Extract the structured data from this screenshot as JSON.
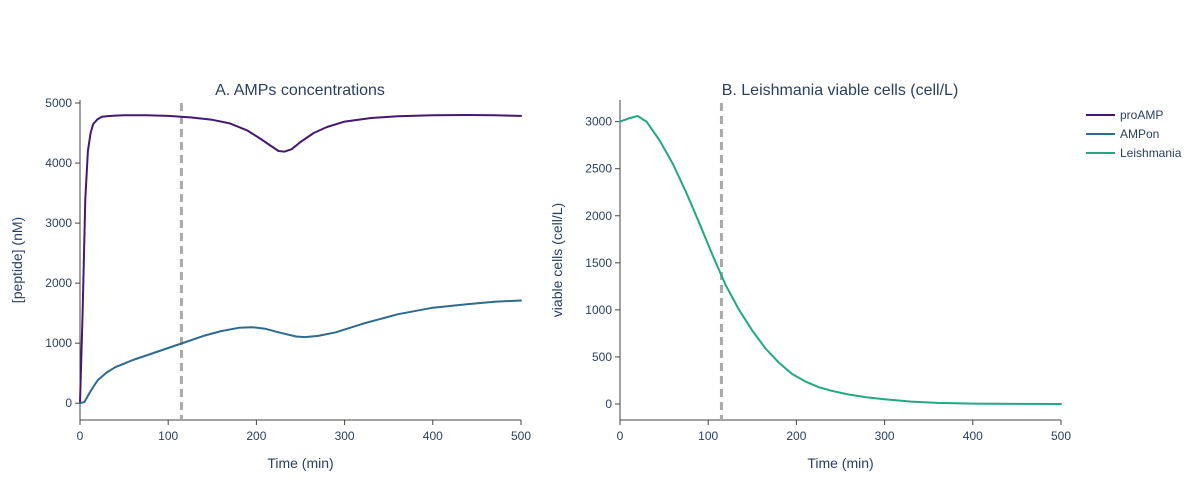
{
  "colors": {
    "proAMP": "#46186e",
    "AMPon": "#2e6b8e",
    "Leishmania": "#22a884",
    "marker": "#aaaaaa",
    "axis": "#444444",
    "text": "#2a3f5f"
  },
  "legend": {
    "placement": "right",
    "items": [
      "proAMP",
      "AMPon",
      "Leishmania"
    ]
  },
  "chart_data": [
    {
      "type": "line",
      "title": "A. AMPs concentrations",
      "xlabel": "Time (min)",
      "ylabel": "[peptide] (nM)",
      "xlim": [
        0,
        500
      ],
      "ylim": [
        -280,
        5050
      ],
      "xticks": [
        0,
        100,
        200,
        300,
        400,
        500
      ],
      "yticks": [
        0,
        1000,
        2000,
        3000,
        4000,
        5000
      ],
      "grid": false,
      "vline_x": 115,
      "series": [
        {
          "name": "proAMP",
          "x": [
            0,
            3,
            6,
            9,
            12,
            15,
            20,
            25,
            30,
            40,
            50,
            75,
            100,
            125,
            150,
            170,
            190,
            205,
            215,
            225,
            232,
            240,
            250,
            265,
            280,
            300,
            330,
            360,
            400,
            440,
            470,
            500
          ],
          "y": [
            0,
            1500,
            3400,
            4200,
            4500,
            4650,
            4730,
            4770,
            4780,
            4790,
            4795,
            4795,
            4785,
            4760,
            4720,
            4660,
            4540,
            4400,
            4300,
            4200,
            4190,
            4230,
            4350,
            4500,
            4600,
            4690,
            4750,
            4780,
            4795,
            4800,
            4795,
            4785
          ]
        },
        {
          "name": "AMPon",
          "x": [
            0,
            5,
            10,
            15,
            20,
            30,
            40,
            60,
            80,
            100,
            120,
            140,
            160,
            180,
            195,
            210,
            225,
            245,
            255,
            270,
            290,
            320,
            360,
            400,
            440,
            470,
            500
          ],
          "y": [
            0,
            20,
            150,
            270,
            380,
            510,
            600,
            720,
            820,
            920,
            1020,
            1120,
            1200,
            1255,
            1265,
            1240,
            1180,
            1110,
            1100,
            1120,
            1180,
            1320,
            1480,
            1590,
            1650,
            1690,
            1710
          ]
        }
      ]
    },
    {
      "type": "line",
      "title": "B. Leishmania viable cells (cell/L)",
      "xlabel": "Time (min)",
      "ylabel": "viable cells (cell/L)",
      "xlim": [
        0,
        500
      ],
      "ylim": [
        -170,
        3230
      ],
      "xticks": [
        0,
        100,
        200,
        300,
        400,
        500
      ],
      "yticks": [
        0,
        500,
        1000,
        1500,
        2000,
        2500,
        3000
      ],
      "grid": false,
      "vline_x": 115,
      "series": [
        {
          "name": "Leishmania",
          "x": [
            0,
            10,
            20,
            30,
            45,
            60,
            75,
            90,
            105,
            120,
            135,
            150,
            165,
            180,
            195,
            210,
            225,
            240,
            260,
            280,
            300,
            330,
            360,
            400,
            450,
            500
          ],
          "y": [
            3000,
            3035,
            3060,
            3000,
            2800,
            2550,
            2250,
            1920,
            1580,
            1260,
            1000,
            780,
            590,
            440,
            320,
            240,
            180,
            140,
            100,
            70,
            50,
            25,
            12,
            4,
            1,
            0
          ]
        }
      ]
    }
  ]
}
